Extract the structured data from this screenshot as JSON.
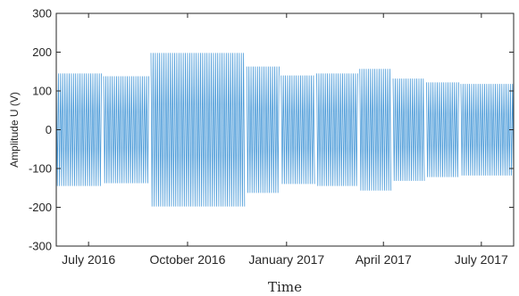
{
  "chart_data": {
    "type": "line",
    "title": "",
    "xlabel": "Time",
    "ylabel": "Amplitude U (V)",
    "ylim": [
      -300,
      300
    ],
    "yticks": [
      -300,
      -200,
      -100,
      0,
      100,
      200,
      300
    ],
    "xlim": [
      "2016-06-01",
      "2017-07-31"
    ],
    "xticks": [
      {
        "date": "2016-07-01",
        "label": "July 2016"
      },
      {
        "date": "2016-10-01",
        "label": "October 2016"
      },
      {
        "date": "2017-01-01",
        "label": "January 2017"
      },
      {
        "date": "2017-04-01",
        "label": "April 2017"
      },
      {
        "date": "2017-07-01",
        "label": "July 2017"
      }
    ],
    "grid": false,
    "color": "#4a9ad8",
    "series": [
      {
        "envelope_segments": [
          {
            "start": "2016-06-01",
            "end": "2016-07-13",
            "amplitude": 145
          },
          {
            "start": "2016-07-15",
            "end": "2016-08-26",
            "amplitude": 138
          },
          {
            "start": "2016-08-28",
            "end": "2016-11-23",
            "amplitude": 198
          },
          {
            "start": "2016-11-25",
            "end": "2016-12-25",
            "amplitude": 163
          },
          {
            "start": "2016-12-27",
            "end": "2017-01-27",
            "amplitude": 140
          },
          {
            "start": "2017-01-29",
            "end": "2017-03-08",
            "amplitude": 145
          },
          {
            "start": "2017-03-10",
            "end": "2017-04-08",
            "amplitude": 157
          },
          {
            "start": "2017-04-10",
            "end": "2017-05-09",
            "amplitude": 132
          },
          {
            "start": "2017-05-11",
            "end": "2017-06-10",
            "amplitude": 122
          },
          {
            "start": "2017-06-12",
            "end": "2017-07-31",
            "amplitude": 118
          }
        ]
      }
    ]
  }
}
